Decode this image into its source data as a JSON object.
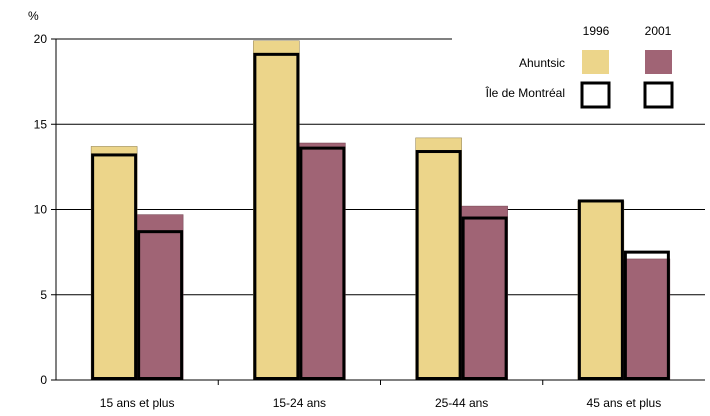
{
  "chart_data": {
    "type": "bar",
    "ylabel": "%",
    "ylim": [
      0,
      20
    ],
    "yticks": [
      0,
      5,
      10,
      15,
      20
    ],
    "grid": true,
    "legend_position": "top-right",
    "categories": [
      "15 ans et plus",
      "15-24 ans",
      "25-44 ans",
      "45 ans et plus"
    ],
    "years": [
      "1996",
      "2001"
    ],
    "series": [
      {
        "name": "Ahuntsic",
        "year": "1996",
        "values": [
          13.7,
          19.9,
          14.2,
          10.5
        ]
      },
      {
        "name": "Ahuntsic",
        "year": "2001",
        "values": [
          9.7,
          13.9,
          10.2,
          7.1
        ]
      },
      {
        "name": "Île de Montréal",
        "year": "1996",
        "values": [
          13.2,
          19.1,
          13.4,
          10.5
        ]
      },
      {
        "name": "Île de Montréal",
        "year": "2001",
        "values": [
          8.7,
          13.6,
          9.5,
          7.5
        ]
      }
    ],
    "colors": {
      "1996": "#ecd58a",
      "2001": "#a06475"
    },
    "legend": {
      "years": [
        "1996",
        "2001"
      ],
      "rows": [
        "Ahuntsic",
        "Île de Montréal"
      ]
    }
  }
}
